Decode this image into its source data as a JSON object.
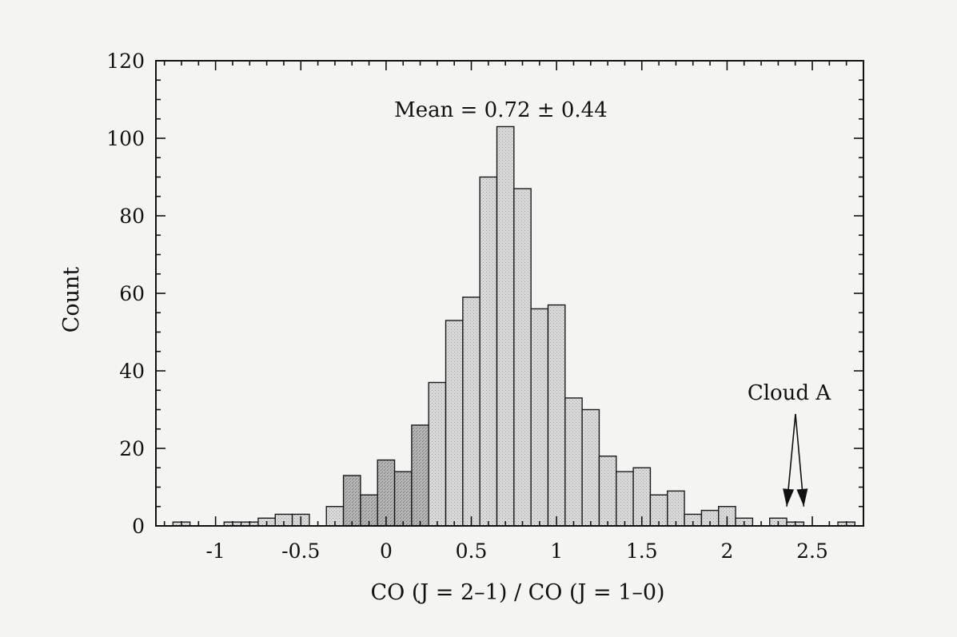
{
  "chart_data": {
    "type": "bar",
    "title": "",
    "xlabel": "CO (J = 2–1) / CO (J = 1–0)",
    "ylabel": "Count",
    "xlim": [
      -1.35,
      2.8
    ],
    "ylim": [
      0,
      120
    ],
    "bin_width": 0.1,
    "xticks": [
      -1,
      -0.5,
      0,
      0.5,
      1,
      1.5,
      2,
      2.5
    ],
    "xtick_labels": [
      "-1",
      "-0.5",
      "0",
      "0.5",
      "1",
      "1.5",
      "2",
      "2.5"
    ],
    "yticks": [
      0,
      20,
      40,
      60,
      80,
      100,
      120
    ],
    "ytick_labels": [
      "0",
      "20",
      "40",
      "60",
      "80",
      "100",
      "120"
    ],
    "grid": false,
    "bins": [
      {
        "x": -1.2,
        "count": 1
      },
      {
        "x": -0.9,
        "count": 1
      },
      {
        "x": -0.8,
        "count": 1
      },
      {
        "x": -0.7,
        "count": 2
      },
      {
        "x": -0.6,
        "count": 3
      },
      {
        "x": -0.5,
        "count": 3
      },
      {
        "x": -0.3,
        "count": 5
      },
      {
        "x": -0.2,
        "count": 13
      },
      {
        "x": -0.1,
        "count": 8
      },
      {
        "x": 0.0,
        "count": 17
      },
      {
        "x": 0.1,
        "count": 14
      },
      {
        "x": 0.2,
        "count": 26
      },
      {
        "x": 0.3,
        "count": 37
      },
      {
        "x": 0.4,
        "count": 53
      },
      {
        "x": 0.5,
        "count": 59
      },
      {
        "x": 0.6,
        "count": 90
      },
      {
        "x": 0.7,
        "count": 103
      },
      {
        "x": 0.8,
        "count": 87
      },
      {
        "x": 0.9,
        "count": 56
      },
      {
        "x": 1.0,
        "count": 57
      },
      {
        "x": 1.1,
        "count": 33
      },
      {
        "x": 1.2,
        "count": 30
      },
      {
        "x": 1.3,
        "count": 18
      },
      {
        "x": 1.4,
        "count": 14
      },
      {
        "x": 1.5,
        "count": 15
      },
      {
        "x": 1.6,
        "count": 8
      },
      {
        "x": 1.7,
        "count": 9
      },
      {
        "x": 1.8,
        "count": 3
      },
      {
        "x": 1.9,
        "count": 4
      },
      {
        "x": 2.0,
        "count": 5
      },
      {
        "x": 2.1,
        "count": 2
      },
      {
        "x": 2.3,
        "count": 2
      },
      {
        "x": 2.4,
        "count": 1
      },
      {
        "x": 2.7,
        "count": 1
      }
    ],
    "annotations": [
      {
        "text": "Mean = 0.72 ± 0.44",
        "x": 0.72,
        "y": 108
      },
      {
        "text": "Cloud A",
        "x": 2.42,
        "y": 33,
        "arrow_targets": [
          2.35,
          2.45
        ],
        "arrow_tip_y": 5
      }
    ],
    "colors": {
      "bar_fill": "#d6d6d6",
      "bar_fill_dark": "#a9a9a9",
      "bar_stroke": "#1a1a1a",
      "axis": "#111111"
    }
  }
}
